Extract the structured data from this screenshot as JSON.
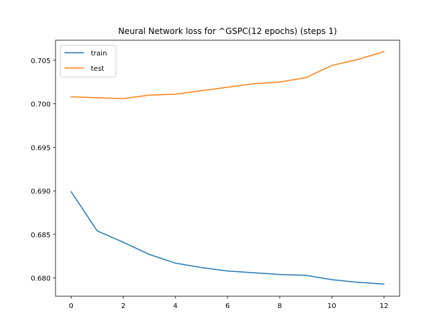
{
  "chart_data": {
    "type": "line",
    "title": "Neural Network loss for ^GSPC(12 epochs) (steps 1)",
    "xlabel": "",
    "ylabel": "",
    "x": [
      0,
      1,
      2,
      3,
      4,
      5,
      6,
      7,
      8,
      9,
      10,
      11,
      12
    ],
    "xlim": [
      -0.6,
      12.6
    ],
    "ylim": [
      0.6779,
      0.7073
    ],
    "xticks": [
      0,
      2,
      4,
      6,
      8,
      10,
      12
    ],
    "yticks": [
      0.68,
      0.685,
      0.69,
      0.695,
      0.7,
      0.705
    ],
    "ytick_labels": [
      "0.680",
      "0.685",
      "0.690",
      "0.695",
      "0.700",
      "0.705"
    ],
    "grid": false,
    "legend_position": "upper-left",
    "series": [
      {
        "name": "train",
        "color": "#1f77b4",
        "values": [
          0.6899,
          0.6854,
          0.6841,
          0.6827,
          0.6817,
          0.6812,
          0.6808,
          0.6806,
          0.6804,
          0.6803,
          0.6798,
          0.6795,
          0.6793
        ]
      },
      {
        "name": "test",
        "color": "#ff7f0e",
        "values": [
          0.7008,
          0.7007,
          0.7006,
          0.701,
          0.7011,
          0.7015,
          0.7019,
          0.7023,
          0.7025,
          0.703,
          0.7044,
          0.7051,
          0.706
        ]
      }
    ]
  }
}
